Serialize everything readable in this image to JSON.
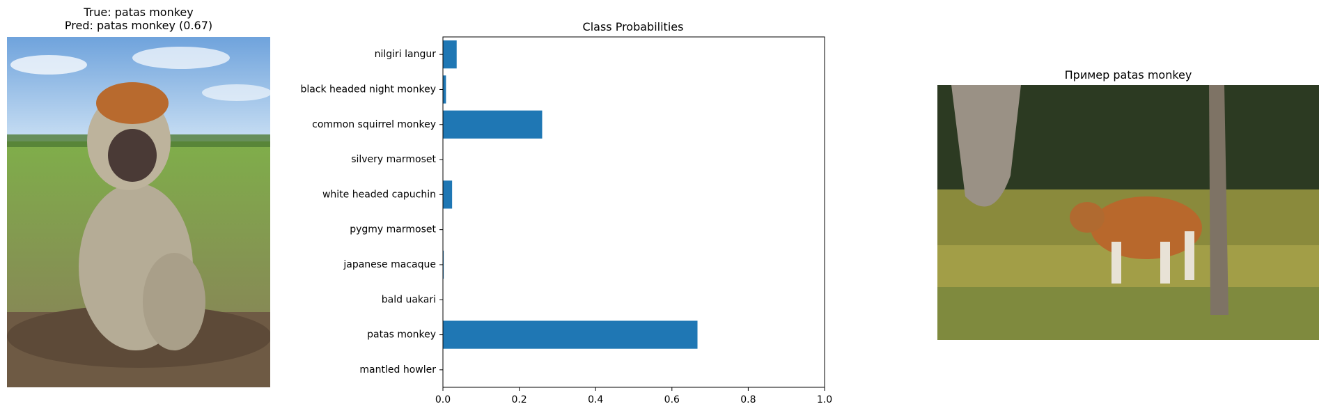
{
  "left_panel": {
    "title_line1": "True: patas monkey",
    "title_line2": "Pred: patas monkey (0.67)"
  },
  "right_panel": {
    "title": "Пример patas monkey"
  },
  "colors": {
    "bar": "#1f77b4"
  },
  "chart_data": {
    "type": "bar",
    "orientation": "horizontal",
    "title": "Class Probabilities",
    "categories": [
      "mantled howler",
      "patas monkey",
      "bald uakari",
      "japanese macaque",
      "pygmy marmoset",
      "white headed capuchin",
      "silvery marmoset",
      "common squirrel monkey",
      "black headed night monkey",
      "nilgiri langur"
    ],
    "values": [
      0.0,
      0.667,
      0.0,
      0.002,
      0.0,
      0.024,
      0.0,
      0.26,
      0.008,
      0.036
    ],
    "xlim": [
      0,
      1.0
    ],
    "xticks": [
      "0.0",
      "0.2",
      "0.4",
      "0.6",
      "0.8",
      "1.0"
    ],
    "xlabel": "",
    "ylabel": "",
    "grid": false
  }
}
